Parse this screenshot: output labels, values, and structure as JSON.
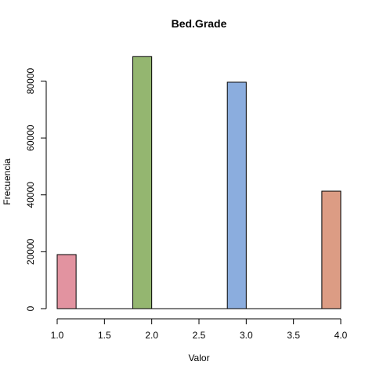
{
  "chart_data": {
    "type": "bar",
    "title": "Bed.Grade",
    "xlabel": "Valor",
    "ylabel": "Frecuencia",
    "xlim": [
      1.0,
      4.0
    ],
    "ylim": [
      0,
      90000
    ],
    "x_ticks": [
      "1.0",
      "1.5",
      "2.0",
      "2.5",
      "3.0",
      "3.5",
      "4.0"
    ],
    "y_ticks": [
      "0",
      "20000",
      "40000",
      "60000",
      "80000"
    ],
    "grid": false,
    "bins": [
      {
        "from": 1.0,
        "to": 1.2,
        "value": 19000,
        "color": "#e293a0"
      },
      {
        "from": 1.8,
        "to": 2.0,
        "value": 88600,
        "color": "#94b670"
      },
      {
        "from": 2.8,
        "to": 3.0,
        "value": 79600,
        "color": "#8badde"
      },
      {
        "from": 3.8,
        "to": 4.0,
        "value": 41300,
        "color": "#dc9c84"
      }
    ],
    "zero_bins": [
      {
        "from": 1.2,
        "to": 1.8
      },
      {
        "from": 2.0,
        "to": 2.8
      },
      {
        "from": 3.0,
        "to": 3.8
      }
    ]
  }
}
